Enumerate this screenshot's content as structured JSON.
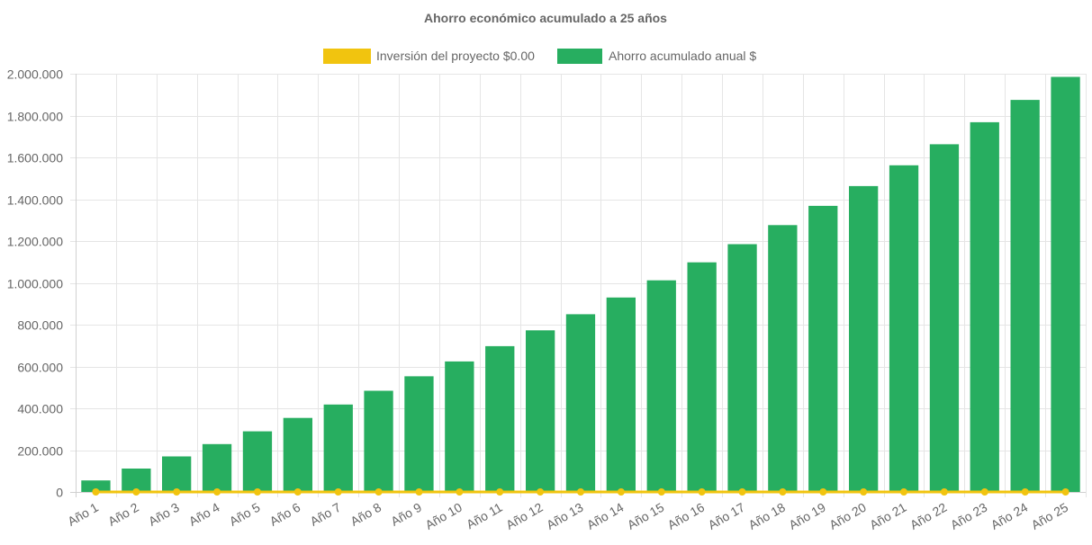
{
  "chart_data": {
    "type": "bar",
    "title": "Ahorro económico acumulado a 25 años",
    "categories": [
      "Año 1",
      "Año 2",
      "Año 3",
      "Año 4",
      "Año 5",
      "Año 6",
      "Año 7",
      "Año 8",
      "Año 9",
      "Año 10",
      "Año 11",
      "Año 12",
      "Año 13",
      "Año 14",
      "Año 15",
      "Año 16",
      "Año 17",
      "Año 18",
      "Año 19",
      "Año 20",
      "Año 21",
      "Año 22",
      "Año 23",
      "Año 24",
      "Año 25"
    ],
    "series": [
      {
        "name": "Inversión del proyecto $0.00",
        "type": "line",
        "color": "#f1c40f",
        "values": [
          0,
          0,
          0,
          0,
          0,
          0,
          0,
          0,
          0,
          0,
          0,
          0,
          0,
          0,
          0,
          0,
          0,
          0,
          0,
          0,
          0,
          0,
          0,
          0,
          0
        ]
      },
      {
        "name": "Ahorro acumulado anual $",
        "type": "bar",
        "color": "#27ae60",
        "values": [
          55000,
          112000,
          170000,
          229000,
          290000,
          354000,
          418000,
          484000,
          553000,
          624000,
          697000,
          773000,
          850000,
          930000,
          1012000,
          1098000,
          1185000,
          1276000,
          1368000,
          1463000,
          1562000,
          1663000,
          1768000,
          1875000,
          1985000
        ]
      }
    ],
    "xlabel": "",
    "ylabel": "",
    "ylim": [
      0,
      2000000
    ],
    "yticks": [
      0,
      200000,
      400000,
      600000,
      800000,
      1000000,
      1200000,
      1400000,
      1600000,
      1800000,
      2000000
    ],
    "ytick_labels": [
      "0",
      "200.000",
      "400.000",
      "600.000",
      "800.000",
      "1.000.000",
      "1.200.000",
      "1.400.000",
      "1.600.000",
      "1.800.000",
      "2.000.000"
    ],
    "grid": true,
    "legend_position": "top-center"
  }
}
